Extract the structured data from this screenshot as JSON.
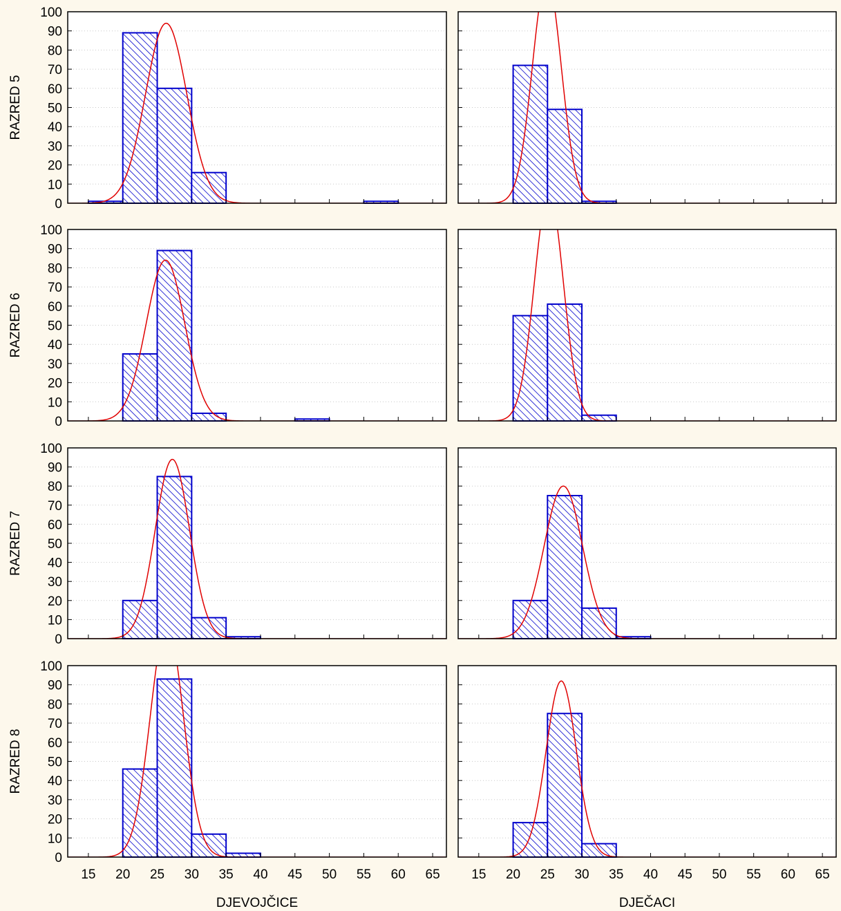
{
  "chart_data": {
    "type": "bar",
    "layout": "4x2 histogram grid with fitted normal curves",
    "row_labels": [
      "RAZRED 5",
      "RAZRED 6",
      "RAZRED 7",
      "RAZRED 8"
    ],
    "col_labels": [
      "DJEVOJČICE",
      "DJEČACI"
    ],
    "bin_edges": [
      15,
      20,
      25,
      30,
      35,
      40,
      45,
      50,
      55,
      60,
      65
    ],
    "x_ticks": [
      15,
      20,
      25,
      30,
      35,
      40,
      45,
      50,
      55,
      60,
      65
    ],
    "y_ticks": [
      0,
      10,
      20,
      30,
      40,
      50,
      60,
      70,
      80,
      90,
      100
    ],
    "xlim": [
      12,
      67
    ],
    "ylim": [
      0,
      100
    ],
    "grid": "horizontal dotted",
    "colors": {
      "bar_edge": "#0000CC",
      "bar_hatch": "#0000CC",
      "curve": "#E00000",
      "panel_bg": "#FFFFFF",
      "page_bg": "#FDF8EC"
    },
    "panels": [
      {
        "row": 0,
        "col": 0,
        "counts": [
          1,
          89,
          60,
          16,
          0,
          0,
          0,
          0,
          1,
          0
        ],
        "curve": {
          "mean": 26.3,
          "sd": 3.0,
          "peak": 94
        }
      },
      {
        "row": 0,
        "col": 1,
        "counts": [
          0,
          72,
          49,
          1,
          0,
          0,
          0,
          0,
          0,
          0
        ],
        "curve": {
          "mean": 24.9,
          "sd": 2.1,
          "peak": 118
        }
      },
      {
        "row": 1,
        "col": 0,
        "counts": [
          0,
          35,
          89,
          4,
          0,
          0,
          1,
          0,
          0,
          0
        ],
        "curve": {
          "mean": 26.2,
          "sd": 2.8,
          "peak": 84
        }
      },
      {
        "row": 1,
        "col": 1,
        "counts": [
          0,
          55,
          61,
          3,
          0,
          0,
          0,
          0,
          0,
          0
        ],
        "curve": {
          "mean": 25.2,
          "sd": 2.1,
          "peak": 120
        }
      },
      {
        "row": 2,
        "col": 0,
        "counts": [
          0,
          20,
          85,
          11,
          1,
          0,
          0,
          0,
          0,
          0
        ],
        "curve": {
          "mean": 27.2,
          "sd": 2.5,
          "peak": 94
        }
      },
      {
        "row": 2,
        "col": 1,
        "counts": [
          0,
          20,
          75,
          16,
          1,
          0,
          0,
          0,
          0,
          0
        ],
        "curve": {
          "mean": 27.3,
          "sd": 2.8,
          "peak": 80
        }
      },
      {
        "row": 3,
        "col": 0,
        "counts": [
          0,
          46,
          93,
          12,
          2,
          0,
          0,
          0,
          0,
          0
        ],
        "curve": {
          "mean": 26.4,
          "sd": 2.4,
          "peak": 122
        }
      },
      {
        "row": 3,
        "col": 1,
        "counts": [
          0,
          18,
          75,
          7,
          0,
          0,
          0,
          0,
          0,
          0
        ],
        "curve": {
          "mean": 27.0,
          "sd": 2.2,
          "peak": 92
        }
      }
    ]
  }
}
